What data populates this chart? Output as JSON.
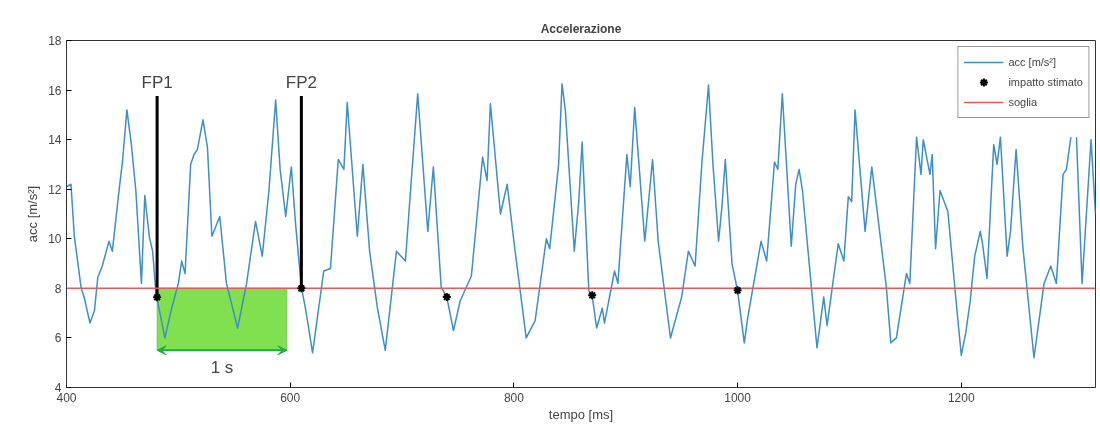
{
  "chart_data": {
    "type": "line",
    "title": "Accelerazione",
    "xlabel": "tempo [ms]",
    "ylabel": "acc [m/s²]",
    "xlim": [
      400,
      1320
    ],
    "ylim": [
      4,
      18
    ],
    "xticks": [
      400,
      600,
      800,
      1000,
      1200
    ],
    "yticks": [
      4,
      6,
      8,
      10,
      12,
      14,
      16,
      18
    ],
    "grid": false,
    "legend": "top right",
    "line_style": "solid",
    "series": [
      {
        "name": "acc [m/s²]",
        "color": "#3d8fc4",
        "marker": "none",
        "x": [
          400,
          404,
          407,
          413,
          416,
          421,
          425,
          428,
          432,
          438,
          441,
          447,
          450,
          454,
          458,
          462,
          467,
          470,
          474,
          477,
          480,
          488,
          494,
          500,
          503,
          506,
          511,
          514,
          517,
          522,
          526,
          530,
          537,
          543,
          553,
          561,
          569,
          575,
          581,
          587,
          591,
          596,
          601,
          605,
          610,
          614,
          620,
          630,
          636,
          643,
          648,
          651,
          660,
          665,
          671,
          678,
          685,
          695,
          703,
          708,
          714,
          723,
          728,
          735,
          740,
          746,
          752,
          762,
          772,
          776,
          779,
          788,
          794,
          800,
          811,
          819,
          829,
          832,
          840,
          843,
          846,
          854,
          858,
          861,
          867,
          870,
          874,
          879,
          881,
          890,
          893,
          901,
          904,
          908,
          917,
          924,
          929,
          940,
          950,
          956,
          962,
          968,
          974,
          978,
          983,
          986,
          989,
          995,
          1000,
          1006,
          1009,
          1021,
          1026,
          1033,
          1036,
          1040,
          1048,
          1052,
          1055,
          1058,
          1071,
          1077,
          1080,
          1090,
          1095,
          1099,
          1102,
          1105,
          1114,
          1120,
          1133,
          1137,
          1142,
          1151,
          1154,
          1160,
          1164,
          1166,
          1172,
          1174,
          1177,
          1181,
          1188,
          1195,
          1200,
          1204,
          1208,
          1212,
          1217,
          1219,
          1223,
          1229,
          1232,
          1235,
          1241,
          1244,
          1249,
          1255,
          1265,
          1274,
          1280,
          1285,
          1291,
          1294,
          1298,
          1300,
          1303,
          1308,
          1316,
          1320
        ],
        "values": [
          12.1,
          12.2,
          10.1,
          8.05,
          7.6,
          6.6,
          7.1,
          8.45,
          8.9,
          9.9,
          9.5,
          11.95,
          13.1,
          15.2,
          13.8,
          11.95,
          8.2,
          11.75,
          10.1,
          9.5,
          7.8,
          6.0,
          7.2,
          8.2,
          9.1,
          8.6,
          13.0,
          13.4,
          13.6,
          14.8,
          13.7,
          10.1,
          10.9,
          8.2,
          6.4,
          8.2,
          10.7,
          9.3,
          11.95,
          15.6,
          12.8,
          10.9,
          12.9,
          10.5,
          8.05,
          7.1,
          5.4,
          8.7,
          8.8,
          13.2,
          12.8,
          15.5,
          10.1,
          13.0,
          9.5,
          7.2,
          5.5,
          9.5,
          9.1,
          12.2,
          15.85,
          10.3,
          12.9,
          8.05,
          7.65,
          6.3,
          7.5,
          8.5,
          13.3,
          12.35,
          15.45,
          11.0,
          12.2,
          9.9,
          6.0,
          6.7,
          10.0,
          9.6,
          13.0,
          16.25,
          15.2,
          9.5,
          11.5,
          13.9,
          7.9,
          7.7,
          6.4,
          7.2,
          6.6,
          8.7,
          8.2,
          13.4,
          12.1,
          15.3,
          9.9,
          13.2,
          9.9,
          6.0,
          7.65,
          9.5,
          8.9,
          13.0,
          16.2,
          13.0,
          9.9,
          11.3,
          13.2,
          9.0,
          7.9,
          5.8,
          6.8,
          9.9,
          9.1,
          13.1,
          12.8,
          15.85,
          9.7,
          12.2,
          12.8,
          11.95,
          5.6,
          7.65,
          6.5,
          9.8,
          9.1,
          11.7,
          11.5,
          15.2,
          10.3,
          12.9,
          8.05,
          5.8,
          6.0,
          8.6,
          8.2,
          14.1,
          12.6,
          14.0,
          12.6,
          13.4,
          9.6,
          11.95,
          11.1,
          7.65,
          5.3,
          6.2,
          7.5,
          9.3,
          10.3,
          9.8,
          8.4,
          13.8,
          13.0,
          14.1,
          9.3,
          10.3,
          13.6,
          9.7,
          5.2,
          8.2,
          8.9,
          8.2,
          12.6,
          12.8,
          14.1,
          null,
          14.1,
          8.2,
          14.0,
          11.0
        ]
      },
      {
        "name": "impatto stimato",
        "color": "#000000",
        "type": "scatter",
        "marker": "cross",
        "x": [
          481,
          610,
          740,
          870,
          1000
        ],
        "values": [
          7.64,
          8.0,
          7.65,
          7.72,
          7.92
        ]
      }
    ],
    "ref_lines": [
      {
        "axis": "y",
        "value": 8,
        "label": "soglia",
        "color": "#e8595c",
        "line_style": "solid"
      }
    ],
    "bands": [
      {
        "axis": "x",
        "from": 481,
        "to": 597,
        "label": "1 s",
        "color": "#80e050"
      }
    ],
    "annotations": [
      {
        "text": "FP1",
        "x": 481,
        "y": 7.64
      },
      {
        "text": "FP2",
        "x": 610,
        "y": 8.0
      }
    ]
  }
}
